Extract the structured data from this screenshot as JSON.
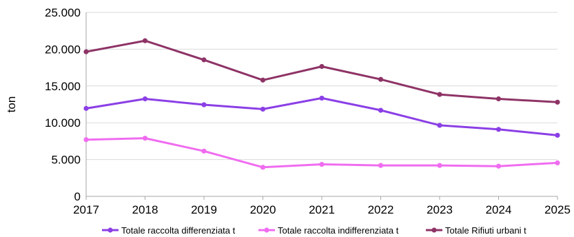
{
  "chart_data": {
    "type": "line",
    "title": "",
    "xlabel": "",
    "ylabel": "ton",
    "ylim": [
      0,
      25000
    ],
    "y_ticks": [
      0,
      5000,
      10000,
      15000,
      20000,
      25000
    ],
    "y_tick_labels": [
      "0",
      "5.000",
      "10.000",
      "15.000",
      "20.000",
      "25.000"
    ],
    "grid": "horizontal",
    "legend_position": "bottom",
    "categories": [
      "2017",
      "2018",
      "2019",
      "2020",
      "2021",
      "2022",
      "2023",
      "2024",
      "2025"
    ],
    "series": [
      {
        "name": "Totale raccolta differenziata t",
        "color": "#8B3FE6",
        "values": [
          11950,
          13250,
          12450,
          11850,
          13350,
          11700,
          9650,
          9100,
          8300
        ]
      },
      {
        "name": "Totale raccolta indifferenziata t",
        "color": "#F06CF0",
        "values": [
          7700,
          7900,
          6150,
          3950,
          4350,
          4200,
          4200,
          4100,
          4550
        ]
      },
      {
        "name": "Totale Rifiuti urbani t",
        "color": "#8E3366",
        "values": [
          19650,
          21150,
          18550,
          15800,
          17650,
          15900,
          13850,
          13250,
          12800
        ]
      }
    ]
  }
}
